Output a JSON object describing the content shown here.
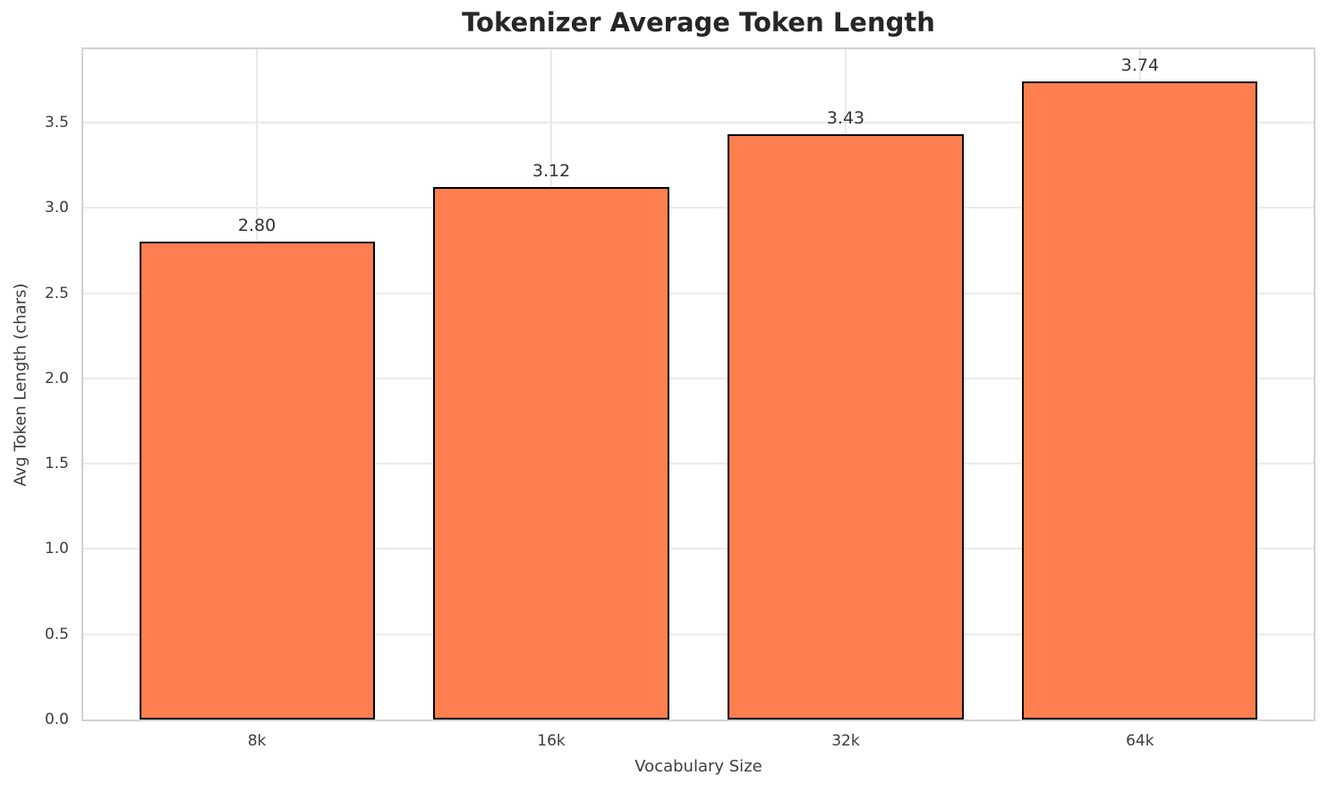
{
  "chart_data": {
    "type": "bar",
    "title": "Tokenizer Average Token Length",
    "xlabel": "Vocabulary Size",
    "ylabel": "Avg Token Length (chars)",
    "categories": [
      "8k",
      "16k",
      "32k",
      "64k"
    ],
    "values": [
      2.8,
      3.12,
      3.43,
      3.74
    ],
    "value_labels": [
      "2.80",
      "3.12",
      "3.43",
      "3.74"
    ],
    "yticks": [
      0.0,
      0.5,
      1.0,
      1.5,
      2.0,
      2.5,
      3.0,
      3.5
    ],
    "ytick_labels": [
      "0.0",
      "0.5",
      "1.0",
      "1.5",
      "2.0",
      "2.5",
      "3.0",
      "3.5"
    ],
    "ylim": [
      0,
      3.93
    ],
    "grid": true,
    "legend_position": "none",
    "bar_color": "#FF7F50",
    "bar_edge_color": "#000000",
    "bar_width_fraction": 0.8,
    "x_units_span": 4.18,
    "x_first_center_units": 0.59
  }
}
